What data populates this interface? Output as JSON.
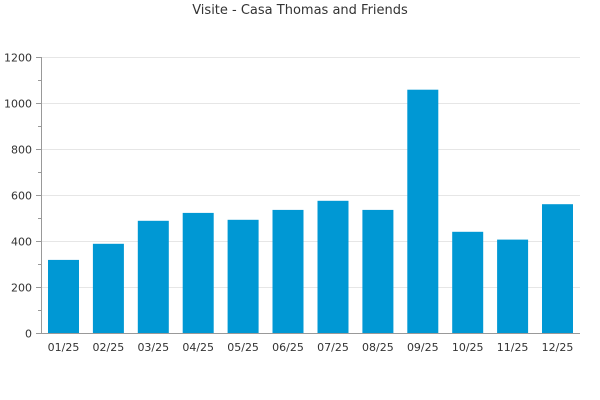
{
  "chart_data": {
    "type": "bar",
    "title": "Visite - Casa Thomas and Friends",
    "xlabel": "",
    "ylabel": "",
    "categories": [
      "01/25",
      "02/25",
      "03/25",
      "04/25",
      "05/25",
      "06/25",
      "07/25",
      "08/25",
      "09/25",
      "10/25",
      "11/25",
      "12/25"
    ],
    "values": [
      318,
      388,
      488,
      522,
      492,
      535,
      575,
      535,
      1058,
      440,
      406,
      560
    ],
    "ylim": [
      0,
      1200
    ],
    "yticks": [
      0,
      200,
      400,
      600,
      800,
      1000,
      1200
    ],
    "grid": true,
    "legend": "none",
    "bar_color": "#0098d4",
    "axis_color": "#999999",
    "grid_color": "#e6e6e6"
  }
}
